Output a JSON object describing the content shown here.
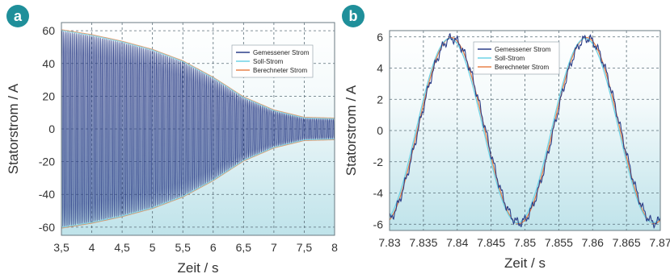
{
  "colors": {
    "measured": "#2c3e88",
    "target": "#6fd3e6",
    "calculated": "#e8824a",
    "badge": "#1f8f9a",
    "plot_bg_top": "#ffffff",
    "plot_bg_bottom": "#bfe3ea"
  },
  "chart_data": [
    {
      "panel": "a",
      "type": "line",
      "xlabel": "Zeit / s",
      "ylabel": "Statorstrom / A",
      "xlim": [
        3.5,
        8
      ],
      "ylim": [
        -65,
        65
      ],
      "xticks": [
        3.5,
        4,
        4.5,
        5,
        5.5,
        6,
        6.5,
        7,
        7.5,
        8
      ],
      "xtick_labels": [
        "3,5",
        "4",
        "4,5",
        "5",
        "5,5",
        "6",
        "6,5",
        "7",
        "7,5",
        "8"
      ],
      "yticks": [
        -60,
        -40,
        -20,
        0,
        20,
        40,
        60
      ],
      "ytick_labels": [
        "-60",
        "-40",
        "-20",
        "0",
        "20",
        "40",
        "60"
      ],
      "grid": true,
      "legend_position": "top-right",
      "series": [
        {
          "name": "Gemessener Strom",
          "kind": "measured"
        },
        {
          "name": "Soll-Strom",
          "kind": "target"
        },
        {
          "name": "Berechneter Strom",
          "kind": "calculated"
        }
      ],
      "signal": "sinusoid",
      "frequency_hz": 25,
      "envelope": {
        "t": [
          3.5,
          4.0,
          4.5,
          5.0,
          5.5,
          6.0,
          6.5,
          7.0,
          7.5,
          8.0
        ],
        "amplitude": [
          60,
          57,
          53,
          48,
          41,
          31,
          19,
          11,
          6.5,
          6
        ]
      }
    },
    {
      "panel": "b",
      "type": "line",
      "xlabel": "Zeit / s",
      "ylabel": "Statorstrom / A",
      "xlim": [
        7.83,
        7.87
      ],
      "ylim": [
        -6.4,
        6.4
      ],
      "xticks": [
        7.83,
        7.835,
        7.84,
        7.845,
        7.85,
        7.855,
        7.86,
        7.865,
        7.87
      ],
      "xtick_labels": [
        "7.83",
        "7.835",
        "7.84",
        "7.845",
        "7.85",
        "7.855",
        "7.86",
        "7.865",
        "7.87"
      ],
      "yticks": [
        -6,
        -4,
        -2,
        0,
        2,
        4,
        6
      ],
      "ytick_labels": [
        "-6",
        "-4",
        "-2",
        "0",
        "2",
        "4",
        "6"
      ],
      "grid": true,
      "legend_position": "top-right",
      "series": [
        {
          "name": "Gemessener Strom",
          "kind": "measured"
        },
        {
          "name": "Soll-Strom",
          "kind": "target"
        },
        {
          "name": "Berechneter Strom",
          "kind": "calculated"
        }
      ],
      "signal": "sinusoid",
      "amplitude": 5.9,
      "peaks_t": [
        7.839,
        7.859
      ],
      "troughs_t": [
        7.849,
        7.869
      ]
    }
  ]
}
